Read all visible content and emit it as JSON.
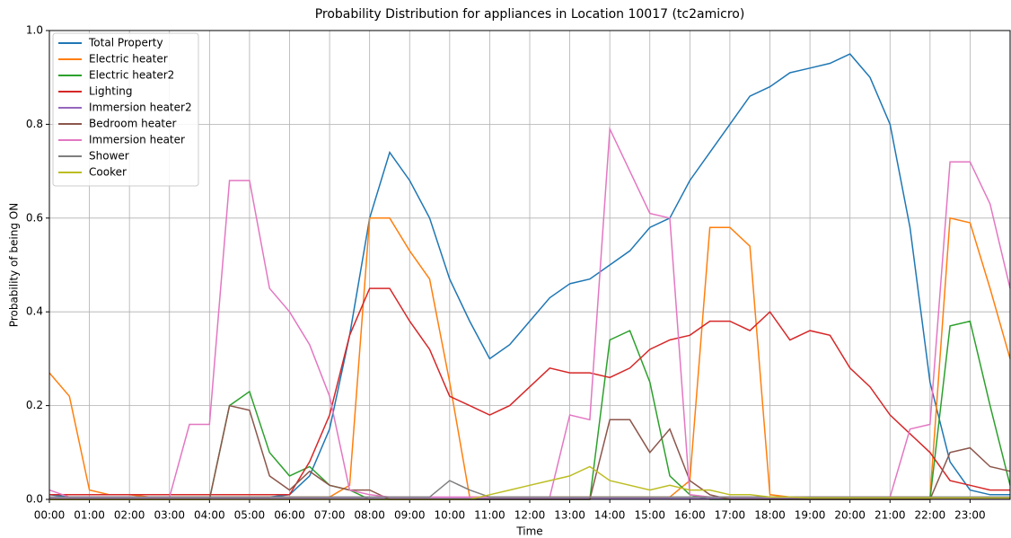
{
  "chart_data": {
    "type": "line",
    "title": "Probability Distribution for appliances in Location 10017 (tc2amicro)",
    "x_label": "Time",
    "y_label": "Probability of being ON",
    "x": [
      0,
      0.5,
      1,
      1.5,
      2,
      2.5,
      3,
      3.5,
      4,
      4.5,
      5,
      5.5,
      6,
      6.5,
      7,
      7.5,
      8,
      8.5,
      9,
      9.5,
      10,
      10.5,
      11,
      11.5,
      12,
      12.5,
      13,
      13.5,
      14,
      14.5,
      15,
      15.5,
      16,
      16.5,
      17,
      17.5,
      18,
      18.5,
      19,
      19.5,
      20,
      20.5,
      21,
      21.5,
      22,
      22.5,
      23,
      23.5,
      24
    ],
    "xlim": [
      0,
      24
    ],
    "xticks": [
      {
        "value": 0,
        "label": "00:00"
      },
      {
        "value": 1,
        "label": "01:00"
      },
      {
        "value": 2,
        "label": "02:00"
      },
      {
        "value": 3,
        "label": "03:00"
      },
      {
        "value": 4,
        "label": "04:00"
      },
      {
        "value": 5,
        "label": "05:00"
      },
      {
        "value": 6,
        "label": "06:00"
      },
      {
        "value": 7,
        "label": "07:00"
      },
      {
        "value": 8,
        "label": "08:00"
      },
      {
        "value": 9,
        "label": "09:00"
      },
      {
        "value": 10,
        "label": "10:00"
      },
      {
        "value": 11,
        "label": "11:00"
      },
      {
        "value": 12,
        "label": "12:00"
      },
      {
        "value": 13,
        "label": "13:00"
      },
      {
        "value": 14,
        "label": "14:00"
      },
      {
        "value": 15,
        "label": "15:00"
      },
      {
        "value": 16,
        "label": "16:00"
      },
      {
        "value": 17,
        "label": "17:00"
      },
      {
        "value": 18,
        "label": "18:00"
      },
      {
        "value": 19,
        "label": "19:00"
      },
      {
        "value": 20,
        "label": "20:00"
      },
      {
        "value": 21,
        "label": "21:00"
      },
      {
        "value": 22,
        "label": "22:00"
      },
      {
        "value": 23,
        "label": "23:00"
      }
    ],
    "ylim": [
      0,
      1.0
    ],
    "yticks": [
      {
        "value": 0,
        "label": "0.0"
      },
      0.2,
      0.4,
      0.6,
      0.8,
      {
        "value": 1,
        "label": "1.0"
      }
    ],
    "grid": true,
    "legend": "upper-left",
    "series": [
      {
        "name": "Total Property",
        "color": "#1f77b4",
        "values": [
          0.01,
          0.005,
          0.005,
          0.005,
          0.005,
          0.005,
          0.005,
          0.005,
          0.005,
          0.005,
          0.005,
          0.005,
          0.01,
          0.05,
          0.15,
          0.35,
          0.6,
          0.74,
          0.68,
          0.6,
          0.47,
          0.38,
          0.3,
          0.33,
          0.38,
          0.43,
          0.46,
          0.47,
          0.5,
          0.53,
          0.58,
          0.6,
          0.68,
          0.74,
          0.8,
          0.86,
          0.88,
          0.91,
          0.92,
          0.93,
          0.95,
          0.9,
          0.8,
          0.58,
          0.25,
          0.08,
          0.02,
          0.01,
          0.01
        ]
      },
      {
        "name": "Electric heater",
        "color": "#ff7f0e",
        "values": [
          0.27,
          0.22,
          0.02,
          0.01,
          0.01,
          0.005,
          0.005,
          0.005,
          0.005,
          0.005,
          0.005,
          0.005,
          0.005,
          0.005,
          0.005,
          0.03,
          0.6,
          0.6,
          0.53,
          0.47,
          0.25,
          0.005,
          0.005,
          0.005,
          0.005,
          0.005,
          0.005,
          0.005,
          0.005,
          0.005,
          0.005,
          0.005,
          0.04,
          0.58,
          0.58,
          0.54,
          0.01,
          0.005,
          0.005,
          0.005,
          0.005,
          0.005,
          0.005,
          0.005,
          0.005,
          0.6,
          0.59,
          0.45,
          0.3
        ]
      },
      {
        "name": "Electric heater2",
        "color": "#2ca02c",
        "values": [
          0,
          0,
          0,
          0,
          0,
          0,
          0,
          0,
          0,
          0.2,
          0.23,
          0.1,
          0.05,
          0.07,
          0.03,
          0.02,
          0,
          0,
          0,
          0,
          0,
          0,
          0,
          0,
          0,
          0,
          0,
          0,
          0.34,
          0.36,
          0.25,
          0.05,
          0.01,
          0,
          0,
          0,
          0,
          0,
          0,
          0,
          0,
          0,
          0,
          0,
          0,
          0.37,
          0.38,
          0.2,
          0.03
        ]
      },
      {
        "name": "Lighting",
        "color": "#d62728",
        "values": [
          0.01,
          0.01,
          0.01,
          0.01,
          0.01,
          0.01,
          0.01,
          0.01,
          0.01,
          0.01,
          0.01,
          0.01,
          0.01,
          0.08,
          0.18,
          0.35,
          0.45,
          0.45,
          0.38,
          0.32,
          0.22,
          0.2,
          0.18,
          0.2,
          0.24,
          0.28,
          0.27,
          0.27,
          0.26,
          0.28,
          0.32,
          0.34,
          0.35,
          0.38,
          0.38,
          0.36,
          0.4,
          0.34,
          0.36,
          0.35,
          0.28,
          0.24,
          0.18,
          0.14,
          0.1,
          0.04,
          0.03,
          0.02,
          0.02
        ]
      },
      {
        "name": "Immersion heater2",
        "color": "#9467bd",
        "values": [
          0.002,
          0.002,
          0.002,
          0.002,
          0.002,
          0.002,
          0.002,
          0.002,
          0.002,
          0.002,
          0.002,
          0.002,
          0.002,
          0.002,
          0.002,
          0.002,
          0.002,
          0.002,
          0.002,
          0.002,
          0.002,
          0.002,
          0.002,
          0.002,
          0.002,
          0.002,
          0.002,
          0.002,
          0.002,
          0.002,
          0.002,
          0.002,
          0.002,
          0.002,
          0.002,
          0.002,
          0.002,
          0.002,
          0.002,
          0.002,
          0.002,
          0.002,
          0.002,
          0.002,
          0.002,
          0.002,
          0.002,
          0.002,
          0.002
        ]
      },
      {
        "name": "Bedroom heater",
        "color": "#8c564b",
        "values": [
          0,
          0,
          0,
          0,
          0,
          0,
          0,
          0,
          0,
          0.2,
          0.19,
          0.05,
          0.02,
          0.06,
          0.03,
          0.02,
          0.02,
          0,
          0,
          0,
          0,
          0,
          0,
          0,
          0,
          0,
          0,
          0,
          0.17,
          0.17,
          0.1,
          0.15,
          0.04,
          0.01,
          0,
          0,
          0,
          0,
          0,
          0,
          0,
          0,
          0,
          0,
          0,
          0.1,
          0.11,
          0.07,
          0.06
        ]
      },
      {
        "name": "Immersion heater",
        "color": "#e377c2",
        "values": [
          0.02,
          0.005,
          0.005,
          0.005,
          0.005,
          0.005,
          0.005,
          0.16,
          0.16,
          0.68,
          0.68,
          0.45,
          0.4,
          0.33,
          0.22,
          0.02,
          0.01,
          0.005,
          0.005,
          0.005,
          0.005,
          0.005,
          0.005,
          0.005,
          0.005,
          0.005,
          0.18,
          0.17,
          0.79,
          0.7,
          0.61,
          0.6,
          0.01,
          0.005,
          0.005,
          0.005,
          0.005,
          0.005,
          0.005,
          0.005,
          0.005,
          0.005,
          0.005,
          0.15,
          0.16,
          0.72,
          0.72,
          0.63,
          0.45
        ]
      },
      {
        "name": "Shower",
        "color": "#7f7f7f",
        "values": [
          0.005,
          0.005,
          0.005,
          0.005,
          0.005,
          0.005,
          0.005,
          0.005,
          0.005,
          0.005,
          0.005,
          0.005,
          0.005,
          0.005,
          0.005,
          0.005,
          0.005,
          0.005,
          0.005,
          0.005,
          0.04,
          0.02,
          0.005,
          0.005,
          0.005,
          0.005,
          0.005,
          0.005,
          0.005,
          0.005,
          0.005,
          0.005,
          0.005,
          0.005,
          0.005,
          0.005,
          0.005,
          0.005,
          0.005,
          0.005,
          0.005,
          0.005,
          0.005,
          0.005,
          0.005,
          0.005,
          0.005,
          0.005,
          0.005
        ]
      },
      {
        "name": "Cooker",
        "color": "#bcbd22",
        "values": [
          0,
          0,
          0,
          0,
          0,
          0,
          0,
          0,
          0,
          0,
          0,
          0,
          0,
          0,
          0,
          0,
          0,
          0,
          0,
          0,
          0,
          0,
          0.01,
          0.02,
          0.03,
          0.04,
          0.05,
          0.07,
          0.04,
          0.03,
          0.02,
          0.03,
          0.02,
          0.02,
          0.01,
          0.01,
          0.005,
          0.005,
          0.003,
          0.003,
          0.003,
          0.003,
          0.003,
          0.003,
          0.003,
          0.003,
          0.003,
          0.003,
          0.003
        ]
      }
    ]
  }
}
